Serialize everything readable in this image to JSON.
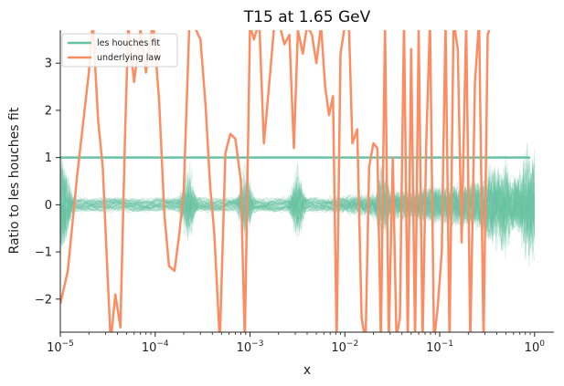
{
  "chart_data": {
    "type": "line",
    "title": "T15 at 1.65 GeV",
    "xlabel": "x",
    "ylabel": "Ratio to les houches fit",
    "xscale": "log",
    "xlim": [
      1e-05,
      1.6
    ],
    "ylim": [
      -2.7,
      3.7
    ],
    "x_ticks": [
      {
        "value": 1e-05,
        "base": "10",
        "exp": "−5"
      },
      {
        "value": 0.0001,
        "base": "10",
        "exp": "−4"
      },
      {
        "value": 0.001,
        "base": "10",
        "exp": "−3"
      },
      {
        "value": 0.01,
        "base": "10",
        "exp": "−2"
      },
      {
        "value": 0.1,
        "base": "10",
        "exp": "−1"
      },
      {
        "value": 1,
        "base": "10",
        "exp": "0"
      }
    ],
    "y_ticks": [
      {
        "value": -2,
        "label": "−2"
      },
      {
        "value": -1,
        "label": "−1"
      },
      {
        "value": 0,
        "label": "0"
      },
      {
        "value": 1,
        "label": "1"
      },
      {
        "value": 2,
        "label": "2"
      },
      {
        "value": 3,
        "label": "3"
      }
    ],
    "legend_position": "top-left",
    "grid": false,
    "series": [
      {
        "name": "les houches fit",
        "color": "#66c2a5",
        "x": [
          1e-05,
          0.9
        ],
        "y": [
          1,
          1
        ]
      },
      {
        "name": "underlying law",
        "color": "#fc8d62",
        "x": [
          1e-05,
          1.2e-05,
          1.5e-05,
          2e-05,
          2.2e-05,
          2.5e-05,
          2.8e-05,
          3.1e-05,
          3.4e-05,
          3.8e-05,
          4.3e-05,
          4.8e-05,
          5.2e-05,
          6e-05,
          7e-05,
          8e-05,
          9.5e-05,
          0.00011,
          0.000125,
          0.00014,
          0.00016,
          0.00018,
          0.0002,
          0.00023,
          0.00027,
          0.0003,
          0.00034,
          0.00038,
          0.00042,
          0.00048,
          0.00055,
          0.00062,
          0.0007,
          0.0008,
          0.00088,
          0.001,
          0.0011,
          0.00125,
          0.0014,
          0.0016,
          0.0018,
          0.002,
          0.0023,
          0.0026,
          0.0029,
          0.0032,
          0.0036,
          0.004,
          0.0045,
          0.005,
          0.0056,
          0.0062,
          0.0068,
          0.0075,
          0.0082,
          0.009,
          0.01,
          0.011,
          0.012,
          0.0135,
          0.015,
          0.0165,
          0.018,
          0.02,
          0.022,
          0.024,
          0.0265,
          0.029,
          0.032,
          0.035,
          0.038,
          0.042,
          0.046,
          0.05,
          0.055,
          0.06,
          0.066,
          0.072,
          0.079,
          0.087,
          0.095,
          0.105,
          0.115,
          0.127,
          0.14,
          0.155,
          0.17,
          0.19,
          0.21,
          0.235,
          0.26,
          0.29,
          0.32,
          0.36,
          0.4,
          0.45,
          0.5,
          0.56,
          0.62,
          0.7,
          0.78,
          0.85,
          0.9
        ],
        "y": [
          -2.1,
          -1.4,
          0.6,
          2.8,
          3.9,
          1.8,
          0.8,
          -1.2,
          -2.9,
          -1.9,
          -2.6,
          1.4,
          3.8,
          2.6,
          3.7,
          2.8,
          3.9,
          2.2,
          -0.2,
          -1.3,
          -1.4,
          -0.6,
          0.3,
          3.9,
          3.7,
          3.5,
          2.1,
          0.4,
          -0.6,
          -2.9,
          1.1,
          1.5,
          1.4,
          0.5,
          -2.9,
          3.8,
          3.5,
          3.9,
          1.3,
          2.6,
          3.8,
          3.9,
          3.4,
          3.6,
          1.2,
          3.7,
          3.2,
          3.8,
          3.6,
          3.0,
          3.8,
          2.5,
          1.9,
          2.3,
          -2.9,
          3.2,
          3.8,
          3.9,
          1.3,
          1.6,
          -2.4,
          -2.9,
          0.8,
          1.3,
          1.2,
          -2.9,
          3.8,
          -2.9,
          1.0,
          -2.8,
          -2.4,
          3.9,
          -2.9,
          3.3,
          -2.9,
          3.7,
          -2.9,
          1.3,
          3.9,
          -2.9,
          -2.2,
          -1.0,
          3.9,
          -2.9,
          3.9,
          3.3,
          -0.8,
          3.9,
          -2.9,
          2.6,
          3.9,
          -2.9,
          3.6,
          3.9,
          3.9,
          3.9,
          3.9,
          3.9,
          3.9,
          3.9,
          3.9,
          3.9,
          3.9
        ]
      }
    ],
    "replica_band": {
      "label": "",
      "color": "#66c2a5",
      "count": 60
    }
  }
}
